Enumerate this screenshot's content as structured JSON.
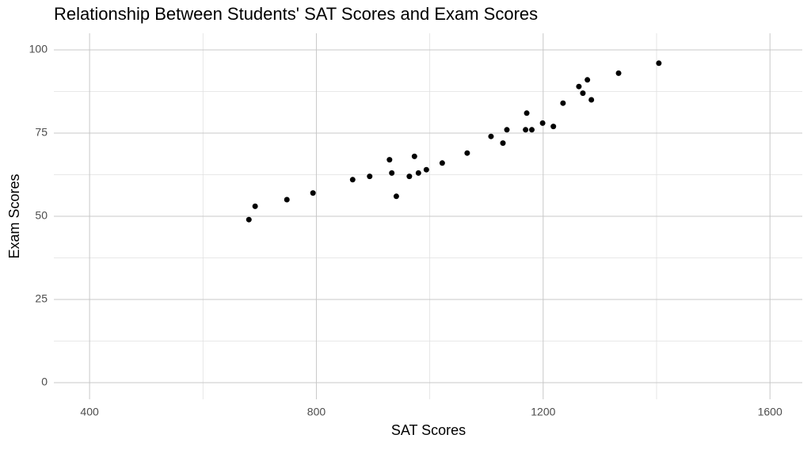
{
  "chart_data": {
    "type": "scatter",
    "title": "Relationship Between Students' SAT Scores and Exam Scores",
    "x_label": "SAT Scores",
    "y_label": "Exam Scores",
    "x": [
      681,
      692,
      748,
      794,
      864,
      894,
      929,
      933,
      941,
      964,
      973,
      980,
      994,
      1022,
      1066,
      1108,
      1129,
      1136,
      1171,
      1169,
      1180,
      1199,
      1218,
      1235,
      1263,
      1270,
      1278,
      1285,
      1333,
      1404
    ],
    "values": [
      49,
      53,
      55,
      57,
      61,
      62,
      67,
      63,
      56,
      62,
      68,
      63,
      64,
      66,
      69,
      74,
      72,
      76,
      81,
      76,
      76,
      78,
      77,
      84,
      89,
      87,
      91,
      85,
      93,
      96
    ],
    "color": "#000000",
    "xlim": [
      337,
      1657
    ],
    "xticks": [
      400,
      800,
      1200,
      1600
    ],
    "x_minor_ticks": [
      600,
      1000,
      1400
    ],
    "ylim": [
      -5,
      105
    ],
    "yticks": [
      0,
      25,
      50,
      75,
      100
    ],
    "y_minor_ticks": [
      12.5,
      37.5,
      62.5,
      87.5
    ],
    "grid": true
  }
}
